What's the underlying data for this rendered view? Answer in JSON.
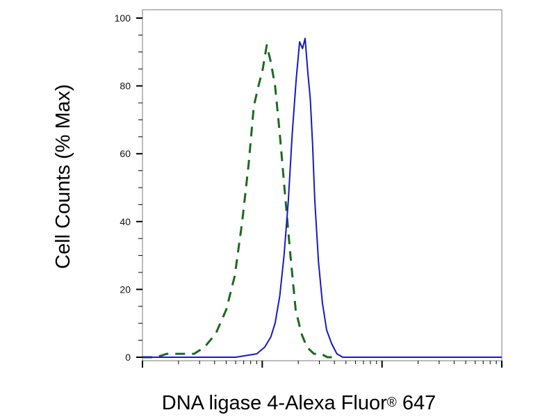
{
  "chart_data": {
    "type": "line",
    "title": "",
    "xlabel": "DNA ligase 4-Alexa Fluor",
    "xlabel_mark": "®",
    "xlabel_suffix": " 647",
    "ylabel": "Cell Counts (% Max)",
    "xscale": "log",
    "xlim": [
      0.001,
      1
    ],
    "ylim": [
      0,
      100
    ],
    "yticks": [
      0,
      20,
      40,
      60,
      80,
      100
    ],
    "grid": false,
    "legend": "none",
    "series": [
      {
        "color": "#1a6b1a",
        "style": "dashed",
        "x": [
          0.001,
          0.0013,
          0.0016,
          0.0021,
          0.0027,
          0.0033,
          0.0041,
          0.005,
          0.0059,
          0.0068,
          0.0077,
          0.0085,
          0.0093,
          0.0101,
          0.0109,
          0.0118,
          0.0128,
          0.014,
          0.0155,
          0.0172,
          0.019,
          0.0212,
          0.0236,
          0.027,
          0.031,
          0.035,
          0.04
        ],
        "y": [
          0,
          0,
          1,
          1,
          1,
          3,
          7,
          14,
          24,
          40,
          57,
          74,
          80,
          85,
          92,
          87,
          80,
          66,
          48,
          30,
          14,
          7,
          3,
          1,
          1,
          0,
          0
        ]
      },
      {
        "color": "#1818c0",
        "style": "solid",
        "x": [
          0.001,
          0.006,
          0.009,
          0.0105,
          0.0118,
          0.0128,
          0.014,
          0.0152,
          0.0165,
          0.0178,
          0.0192,
          0.0205,
          0.0217,
          0.0228,
          0.024,
          0.0252,
          0.0263,
          0.0275,
          0.0295,
          0.0318,
          0.0345,
          0.038,
          0.042,
          0.047,
          0.055,
          0.07,
          0.1,
          0.2,
          1
        ],
        "y": [
          0,
          0,
          1,
          3,
          6,
          10,
          18,
          30,
          46,
          66,
          82,
          93,
          91,
          94,
          84,
          76,
          63,
          46,
          28,
          16,
          8,
          4,
          1,
          0,
          0,
          0,
          0,
          0,
          0
        ]
      }
    ]
  }
}
